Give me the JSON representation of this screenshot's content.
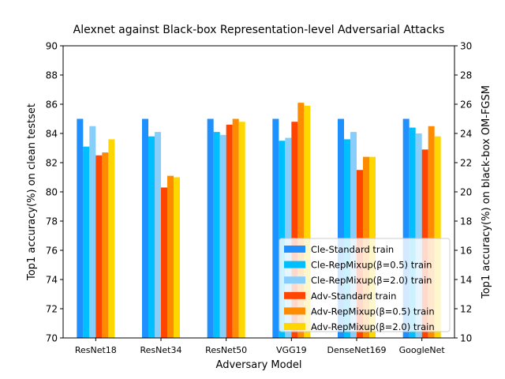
{
  "chart_data": {
    "type": "bar",
    "title": "Alexnet against Black-box Representation-level Adversarial Attacks",
    "xlabel": "Adversary Model",
    "ylabel": "Top1 accuracy(%) on clean testset",
    "y2label": "Top1 accuracy(%) on black-box OM-FGSM",
    "categories": [
      "ResNet18",
      "ResNet34",
      "ResNet50",
      "VGG19",
      "DenseNet169",
      "GoogleNet"
    ],
    "ylim": [
      70,
      90
    ],
    "y2lim": [
      10,
      30
    ],
    "yticks": [
      "70",
      "72",
      "74",
      "76",
      "78",
      "80",
      "82",
      "84",
      "86",
      "88",
      "90"
    ],
    "y2ticks": [
      "10",
      "12",
      "14",
      "16",
      "18",
      "20",
      "22",
      "24",
      "26",
      "28",
      "30"
    ],
    "legend_position": "lower-right",
    "grid": false,
    "series": [
      {
        "name": "Cle-Standard train",
        "axis": "left",
        "color": "#1e90ff",
        "values": [
          85.0,
          85.0,
          85.0,
          85.0,
          85.0,
          85.0
        ]
      },
      {
        "name": "Cle-RepMixup(β=0.5) train",
        "axis": "left",
        "color": "#00bfff",
        "values": [
          83.1,
          83.8,
          84.1,
          83.5,
          83.6,
          84.4
        ]
      },
      {
        "name": "Cle-RepMixup(β=2.0) train",
        "axis": "left",
        "color": "#87cefa",
        "values": [
          84.5,
          84.1,
          83.9,
          83.7,
          84.1,
          84.0
        ]
      },
      {
        "name": "Adv-Standard train",
        "axis": "right",
        "color": "#ff4500",
        "values": [
          22.5,
          20.3,
          24.6,
          24.8,
          21.5,
          22.9
        ]
      },
      {
        "name": "Adv-RepMixup(β=0.5) train",
        "axis": "right",
        "color": "#ff8c00",
        "values": [
          22.7,
          21.1,
          25.0,
          26.1,
          22.4,
          24.5
        ]
      },
      {
        "name": "Adv-RepMixup(β=2.0) train",
        "axis": "right",
        "color": "#ffd700",
        "values": [
          23.6,
          21.0,
          24.8,
          25.9,
          22.4,
          23.8
        ]
      }
    ]
  }
}
